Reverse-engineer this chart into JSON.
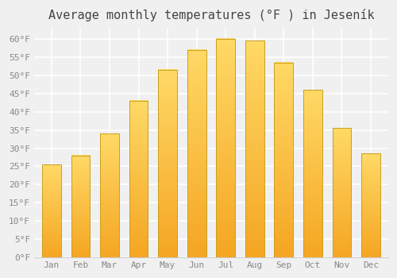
{
  "title": "Average monthly temperatures (°F ) in Jeseník",
  "months": [
    "Jan",
    "Feb",
    "Mar",
    "Apr",
    "May",
    "Jun",
    "Jul",
    "Aug",
    "Sep",
    "Oct",
    "Nov",
    "Dec"
  ],
  "values": [
    25.5,
    28.0,
    34.0,
    43.0,
    51.5,
    57.0,
    60.0,
    59.5,
    53.5,
    46.0,
    35.5,
    28.5
  ],
  "bar_color_bottom": "#F5A623",
  "bar_color_top": "#FFD966",
  "bar_edge_color": "#C8A020",
  "ylim": [
    0,
    63
  ],
  "yticks": [
    0,
    5,
    10,
    15,
    20,
    25,
    30,
    35,
    40,
    45,
    50,
    55,
    60
  ],
  "background_color": "#f0f0f0",
  "grid_color": "#ffffff",
  "title_fontsize": 11,
  "tick_fontsize": 8,
  "tick_color": "#888888",
  "font_family": "monospace"
}
